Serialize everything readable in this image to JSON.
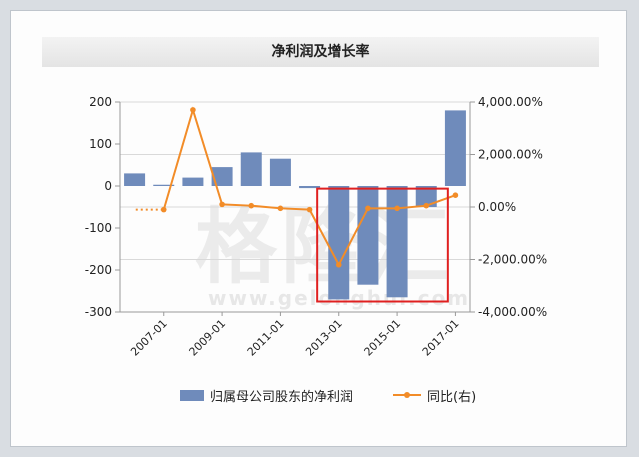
{
  "title": "净利润及增长率",
  "watermark": {
    "chars": "格隆汇",
    "url": "www.gelonghui.com"
  },
  "colors": {
    "bar": "#6f8bbb",
    "line": "#f28c28",
    "highlight": "#e02020",
    "axis": "#999999",
    "grid": "#d9d9d9"
  },
  "chart_data": {
    "type": "bar",
    "title": "净利润及增长率",
    "categories": [
      "2006",
      "2007",
      "2008",
      "2009",
      "2010",
      "2011",
      "2012",
      "2013",
      "2014",
      "2015",
      "2016",
      "2017"
    ],
    "xtick_labels": [
      "2007-01",
      "2009-01",
      "2011-01",
      "2013-01",
      "2015-01",
      "2017-01"
    ],
    "series": [
      {
        "name": "归属母公司股东的净利润",
        "type": "bar",
        "axis": "left",
        "values": [
          30,
          3,
          20,
          45,
          80,
          65,
          -5,
          -270,
          -235,
          -265,
          -50,
          180
        ]
      },
      {
        "name": "同比(右)",
        "type": "line",
        "axis": "right",
        "values": [
          null,
          -100,
          3700,
          100,
          50,
          -50,
          -100,
          -2200,
          -50,
          -50,
          50,
          450
        ],
        "lead_in_dotted": true
      }
    ],
    "ylim_left": [
      -300,
      200
    ],
    "yticks_left": [
      "200",
      "100",
      "0",
      "-100",
      "-200",
      "-300"
    ],
    "ylim_right": [
      -4000,
      4000
    ],
    "yticks_right": [
      "4,000.00%",
      "2,000.00%",
      "0.00%",
      "-2,000.00%",
      "-4,000.00%"
    ],
    "grid": true,
    "legend_position": "bottom",
    "highlight_range": [
      "2013",
      "2016"
    ]
  },
  "legend": {
    "bar_label": "归属母公司股东的净利润",
    "line_label": "同比(右)"
  }
}
